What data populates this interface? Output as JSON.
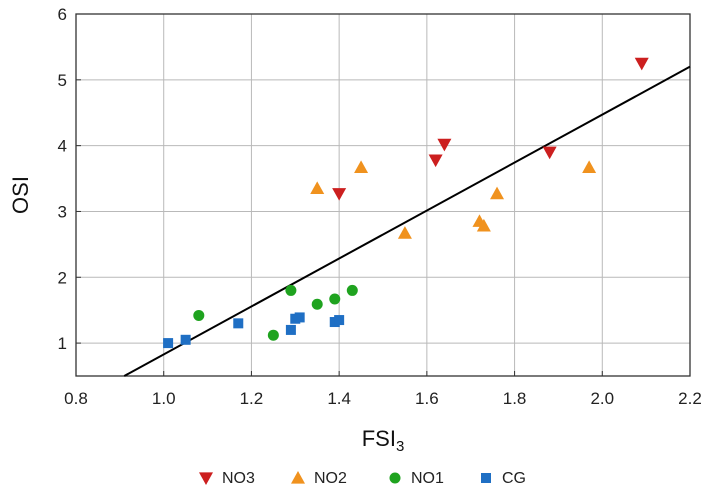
{
  "chart_data": {
    "type": "scatter",
    "xlabel": "FSI",
    "xlabel_sub": "3",
    "ylabel": "OSI",
    "xlim": [
      0.8,
      2.2
    ],
    "ylim": [
      0.5,
      6
    ],
    "xticks": [
      "0.8",
      "1.0",
      "1.2",
      "1.4",
      "1.6",
      "1.8",
      "2.0",
      "2.2"
    ],
    "yticks": [
      "1",
      "2",
      "3",
      "4",
      "5",
      "6"
    ],
    "xtick_values": [
      0.8,
      1.0,
      1.2,
      1.4,
      1.6,
      1.8,
      2.0,
      2.2
    ],
    "ytick_values": [
      1,
      2,
      3,
      4,
      5,
      6
    ],
    "grid": true,
    "legend_position": "bottom",
    "series": [
      {
        "name": "NO3",
        "marker": "triangle-down-icon",
        "color": "#cc1f1f",
        "points": [
          [
            1.4,
            3.27
          ],
          [
            1.62,
            3.78
          ],
          [
            1.64,
            4.02
          ],
          [
            1.88,
            3.9
          ],
          [
            2.09,
            5.25
          ]
        ]
      },
      {
        "name": "NO2",
        "marker": "triangle-up-icon",
        "color": "#f0921e",
        "points": [
          [
            1.35,
            3.35
          ],
          [
            1.45,
            3.67
          ],
          [
            1.55,
            2.67
          ],
          [
            1.72,
            2.85
          ],
          [
            1.73,
            2.78
          ],
          [
            1.76,
            3.27
          ],
          [
            1.97,
            3.67
          ]
        ]
      },
      {
        "name": "NO1",
        "marker": "circle-icon",
        "color": "#1fa31f",
        "points": [
          [
            1.08,
            1.42
          ],
          [
            1.25,
            1.12
          ],
          [
            1.29,
            1.8
          ],
          [
            1.35,
            1.59
          ],
          [
            1.39,
            1.67
          ],
          [
            1.43,
            1.8
          ]
        ]
      },
      {
        "name": "CG",
        "marker": "square-icon",
        "color": "#1f6fc4",
        "points": [
          [
            1.01,
            1.0
          ],
          [
            1.05,
            1.05
          ],
          [
            1.17,
            1.3
          ],
          [
            1.29,
            1.2
          ],
          [
            1.3,
            1.37
          ],
          [
            1.31,
            1.39
          ],
          [
            1.39,
            1.32
          ],
          [
            1.4,
            1.35
          ]
        ]
      }
    ],
    "fit_line": {
      "color": "#000000",
      "points": [
        [
          0.91,
          0.5
        ],
        [
          2.2,
          5.2
        ]
      ]
    }
  }
}
